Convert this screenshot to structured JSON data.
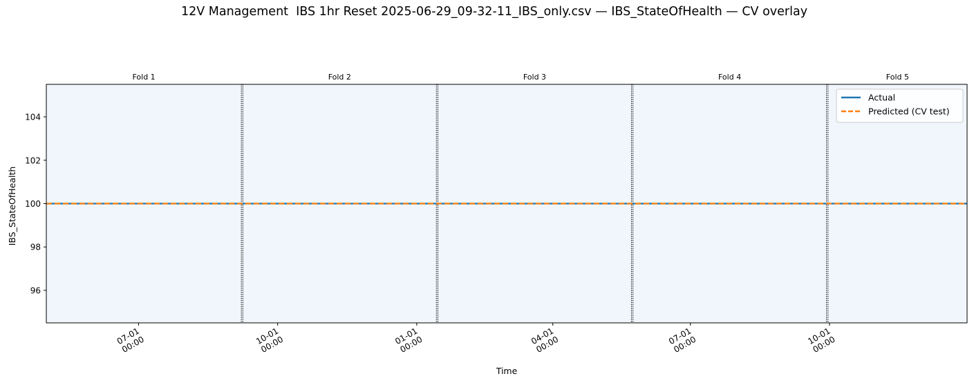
{
  "chart_data": {
    "type": "line",
    "title": "12V Management  IBS 1hr Reset 2025-06-29_09-32-11_IBS_only.csv — IBS_StateOfHealth — CV overlay",
    "xlabel": "Time",
    "ylabel": "IBS_StateOfHealth",
    "xlim": [
      "2024-05-01",
      "2025-12-31"
    ],
    "ylim": [
      94.5,
      105.5
    ],
    "yticks": [
      96,
      98,
      100,
      102,
      104
    ],
    "xticks": [
      {
        "date": "2024-07-01",
        "label": [
          "07-01",
          "00:00"
        ]
      },
      {
        "date": "2024-10-01",
        "label": [
          "10-01",
          "00:00"
        ]
      },
      {
        "date": "2025-01-01",
        "label": [
          "01-01",
          "00:00"
        ]
      },
      {
        "date": "2025-04-01",
        "label": [
          "04-01",
          "00:00"
        ]
      },
      {
        "date": "2025-07-01",
        "label": [
          "07-01",
          "00:00"
        ]
      },
      {
        "date": "2025-10-01",
        "label": [
          "10-01",
          "00:00"
        ]
      }
    ],
    "folds": [
      {
        "name": "Fold 1",
        "start": "2024-05-01",
        "end": "2024-09-07"
      },
      {
        "name": "Fold 2",
        "start": "2024-09-08",
        "end": "2025-01-14"
      },
      {
        "name": "Fold 3",
        "start": "2025-01-15",
        "end": "2025-05-23"
      },
      {
        "name": "Fold 4",
        "start": "2025-05-24",
        "end": "2025-09-29"
      },
      {
        "name": "Fold 5",
        "start": "2025-09-30",
        "end": "2025-12-31"
      }
    ],
    "series": [
      {
        "name": "Actual",
        "color": "#1f77b4",
        "style": "solid",
        "x": [
          "2024-05-01",
          "2025-12-31"
        ],
        "values": [
          100,
          100
        ]
      },
      {
        "name": "Predicted (CV test)",
        "color": "#ff7f0e",
        "style": "dashed",
        "x": [
          "2024-05-01",
          "2025-12-31"
        ],
        "values": [
          100,
          100
        ]
      }
    ],
    "legend": "top-right",
    "grid": false
  }
}
